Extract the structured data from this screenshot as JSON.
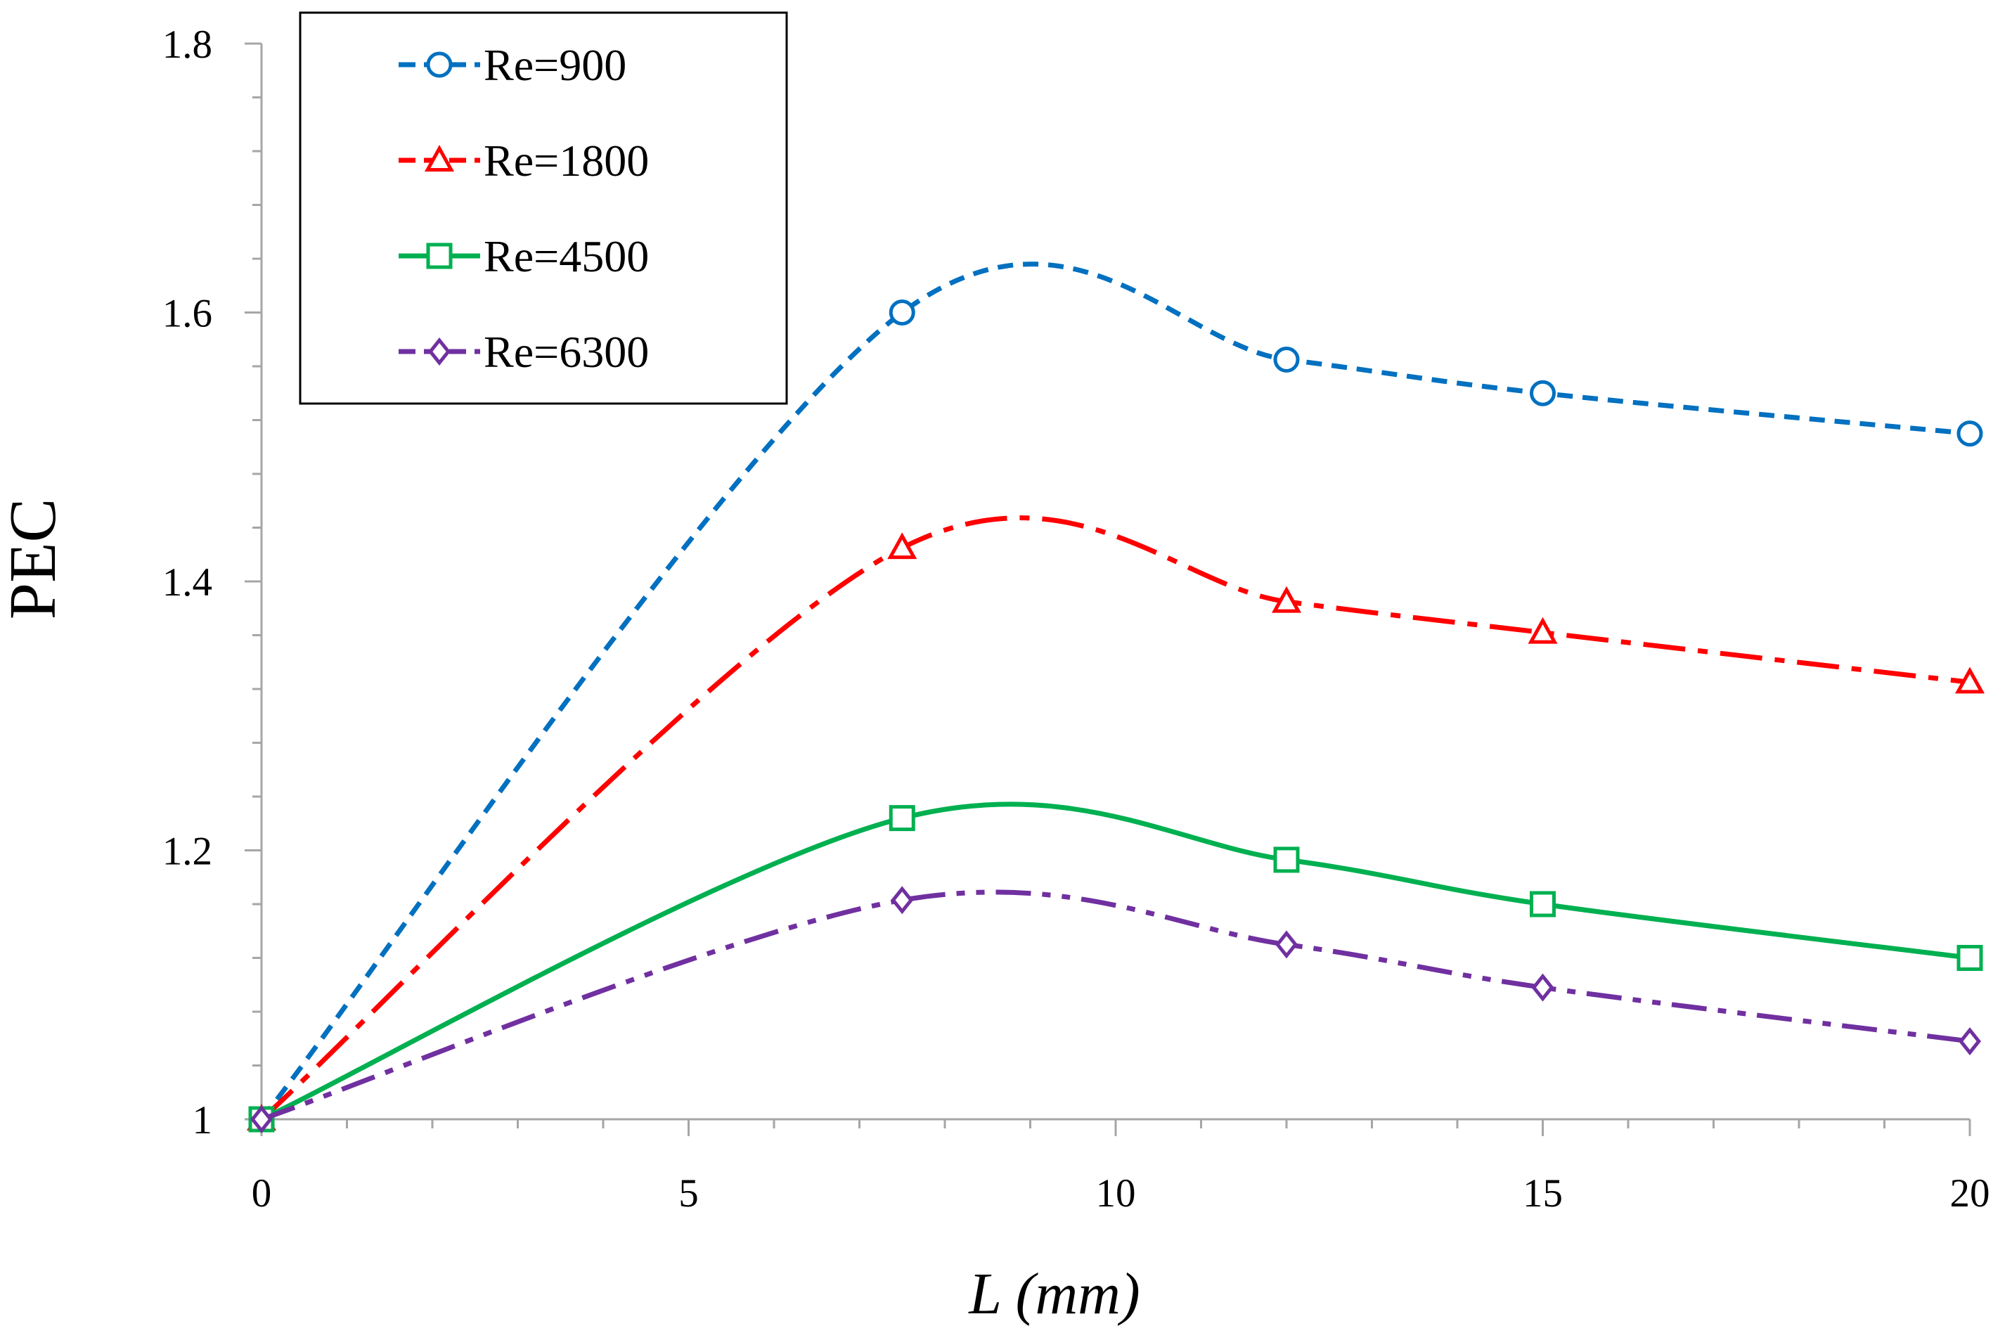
{
  "chart_data": {
    "type": "line",
    "title": "",
    "xlabel": "L (mm)",
    "ylabel": "PEC",
    "xlim": [
      0,
      20
    ],
    "ylim": [
      1,
      1.8
    ],
    "x_ticks": [
      0,
      5,
      10,
      15,
      20
    ],
    "x_tick_labels": [
      "0",
      "5",
      "10",
      "15",
      "20"
    ],
    "y_ticks": [
      1,
      1.2,
      1.4,
      1.6,
      1.8
    ],
    "y_tick_labels": [
      "1",
      "1.2",
      "1.4",
      "1.6",
      "1.8"
    ],
    "grid": false,
    "smooth": true,
    "legend_position": "top-left",
    "x": [
      0,
      7.5,
      12,
      15,
      20
    ],
    "series": [
      {
        "name": "Re=900",
        "values": [
          1.0,
          1.6,
          1.565,
          1.54,
          1.51
        ],
        "color": "#0070C0",
        "marker": "circle",
        "line_style": "short-dash"
      },
      {
        "name": "Re=1800",
        "values": [
          1.0,
          1.425,
          1.385,
          1.362,
          1.325
        ],
        "color": "#FF0000",
        "marker": "triangle",
        "line_style": "dash-dot"
      },
      {
        "name": "Re=4500",
        "values": [
          1.0,
          1.224,
          1.193,
          1.16,
          1.12
        ],
        "color": "#00B050",
        "marker": "square",
        "line_style": "solid"
      },
      {
        "name": "Re=6300",
        "values": [
          1.0,
          1.163,
          1.13,
          1.098,
          1.058
        ],
        "color": "#7030A0",
        "marker": "diamond",
        "line_style": "dash-dot-dot"
      }
    ]
  }
}
